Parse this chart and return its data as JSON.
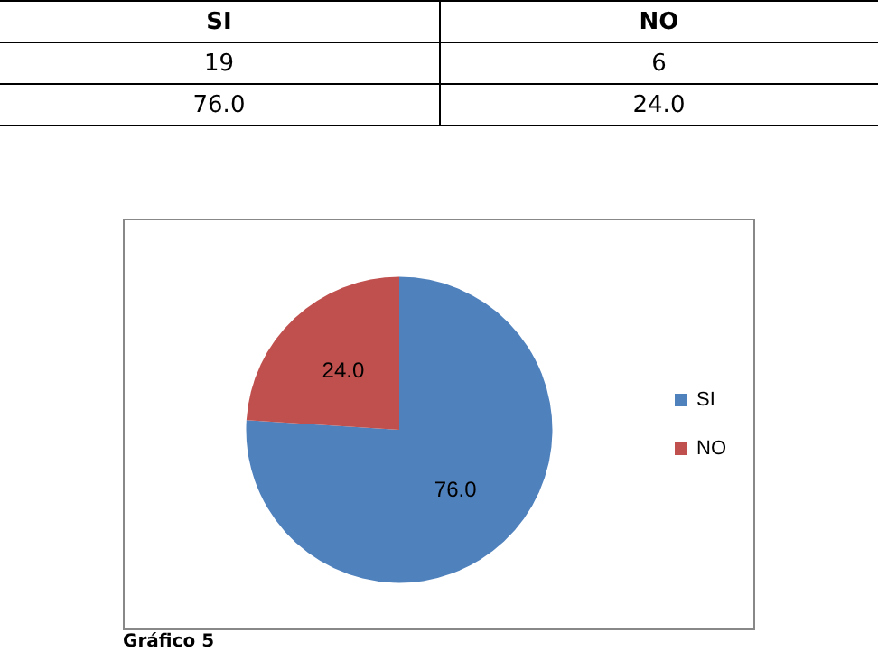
{
  "chart_data": {
    "type": "pie",
    "categories": [
      "SI",
      "NO"
    ],
    "values": [
      76.0,
      24.0
    ],
    "value_labels": [
      "76.0",
      "24.0"
    ],
    "colors": [
      "#4f81bd",
      "#c0504d"
    ],
    "legend": "right",
    "annotations": [
      "19",
      "6",
      "Gráfico 5"
    ]
  }
}
